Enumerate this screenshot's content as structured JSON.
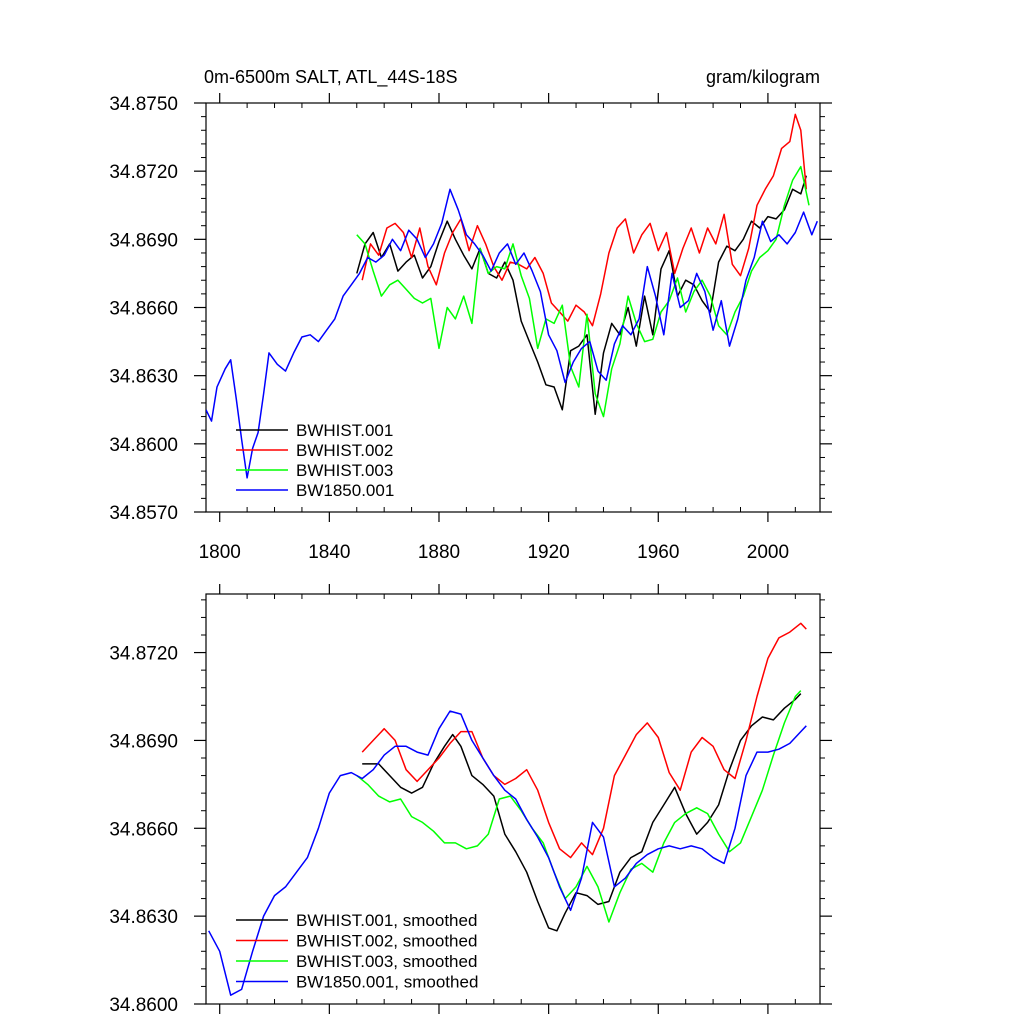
{
  "chart_data": [
    {
      "type": "line",
      "title_left": "0m-6500m SALT, ATL_44S-18S",
      "title_right": "gram/kilogram",
      "xlim": [
        1795,
        2019
      ],
      "ylim": [
        34.857,
        34.875
      ],
      "xticks": [
        1800,
        1840,
        1880,
        1920,
        1960,
        2000
      ],
      "yticks": [
        34.857,
        34.86,
        34.863,
        34.866,
        34.869,
        34.872,
        34.875
      ],
      "ytick_labels": [
        "34.8570",
        "34.8600",
        "34.8630",
        "34.8660",
        "34.8690",
        "34.8720",
        "34.8750"
      ],
      "series": [
        {
          "name": "BWHIST.001",
          "color": "#000000",
          "x": [
            1850,
            1853,
            1856,
            1859,
            1862,
            1865,
            1868,
            1871,
            1874,
            1877,
            1880,
            1883,
            1886,
            1889,
            1892,
            1895,
            1898,
            1901,
            1904,
            1907,
            1910,
            1913,
            1916,
            1919,
            1922,
            1925,
            1928,
            1931,
            1934,
            1937,
            1940,
            1943,
            1946,
            1949,
            1952,
            1955,
            1958,
            1961,
            1964,
            1967,
            1970,
            1973,
            1976,
            1979,
            1982,
            1985,
            1988,
            1991,
            1994,
            1997,
            2000,
            2003,
            2006,
            2009,
            2012,
            2014
          ],
          "values": [
            34.8675,
            34.8688,
            34.8693,
            34.8682,
            34.8688,
            34.8676,
            34.868,
            34.8683,
            34.8673,
            34.8678,
            34.8689,
            34.8698,
            34.869,
            34.8683,
            34.8677,
            34.8686,
            34.8675,
            34.8673,
            34.868,
            34.8672,
            34.8654,
            34.8645,
            34.8636,
            34.8626,
            34.8625,
            34.8615,
            34.8641,
            34.8643,
            34.8648,
            34.8613,
            34.864,
            34.8653,
            34.8648,
            34.866,
            34.8643,
            34.8665,
            34.8648,
            34.8677,
            34.8685,
            34.8665,
            34.8672,
            34.867,
            34.8663,
            34.8658,
            34.868,
            34.8687,
            34.8685,
            34.869,
            34.8698,
            34.8695,
            34.87,
            34.8699,
            34.8703,
            34.8712,
            34.871,
            34.8718
          ]
        },
        {
          "name": "BWHIST.002",
          "color": "#ff0000",
          "x": [
            1852,
            1855,
            1858,
            1861,
            1864,
            1867,
            1870,
            1873,
            1876,
            1879,
            1882,
            1885,
            1888,
            1891,
            1894,
            1897,
            1900,
            1903,
            1906,
            1909,
            1912,
            1915,
            1918,
            1921,
            1924,
            1927,
            1930,
            1933,
            1936,
            1939,
            1942,
            1945,
            1948,
            1951,
            1954,
            1957,
            1960,
            1963,
            1966,
            1969,
            1972,
            1975,
            1978,
            1981,
            1984,
            1987,
            1990,
            1993,
            1996,
            1999,
            2002,
            2005,
            2008,
            2010,
            2012,
            2014
          ],
          "values": [
            34.8672,
            34.8688,
            34.8683,
            34.8695,
            34.8697,
            34.8693,
            34.8682,
            34.8695,
            34.8678,
            34.867,
            34.8684,
            34.8693,
            34.8699,
            34.8685,
            34.8696,
            34.8688,
            34.8678,
            34.8672,
            34.868,
            34.8679,
            34.8677,
            34.8682,
            34.8675,
            34.8662,
            34.8658,
            34.8654,
            34.8661,
            34.8658,
            34.8652,
            34.8666,
            34.8684,
            34.8695,
            34.8699,
            34.8684,
            34.8692,
            34.8697,
            34.8685,
            34.8693,
            34.8675,
            34.8686,
            34.8695,
            34.8684,
            34.8695,
            34.8688,
            34.8701,
            34.8679,
            34.8674,
            34.8686,
            34.8705,
            34.8712,
            34.8718,
            34.873,
            34.8733,
            34.8745,
            34.8738,
            34.8712
          ]
        },
        {
          "name": "BWHIST.003",
          "color": "#00ff00",
          "x": [
            1850,
            1853,
            1856,
            1859,
            1862,
            1865,
            1868,
            1871,
            1874,
            1877,
            1880,
            1883,
            1886,
            1889,
            1892,
            1895,
            1898,
            1901,
            1904,
            1907,
            1910,
            1913,
            1916,
            1919,
            1922,
            1925,
            1928,
            1931,
            1934,
            1937,
            1940,
            1943,
            1946,
            1949,
            1952,
            1955,
            1958,
            1961,
            1964,
            1967,
            1970,
            1973,
            1976,
            1979,
            1982,
            1985,
            1988,
            1991,
            1994,
            1997,
            2000,
            2003,
            2006,
            2009,
            2012,
            2015
          ],
          "values": [
            34.8692,
            34.8688,
            34.8676,
            34.8665,
            34.867,
            34.8672,
            34.8668,
            34.8664,
            34.8662,
            34.8664,
            34.8642,
            34.866,
            34.8655,
            34.8665,
            34.8653,
            34.8686,
            34.8675,
            34.8678,
            34.8677,
            34.8688,
            34.8674,
            34.8664,
            34.8642,
            34.8655,
            34.8653,
            34.8661,
            34.8634,
            34.8625,
            34.8657,
            34.8622,
            34.8612,
            34.8633,
            34.8644,
            34.8665,
            34.8653,
            34.8645,
            34.8646,
            34.8658,
            34.8663,
            34.8673,
            34.8658,
            34.8667,
            34.8672,
            34.8665,
            34.8652,
            34.8648,
            34.8658,
            34.8665,
            34.8676,
            34.8682,
            34.8685,
            34.869,
            34.8705,
            34.8716,
            34.8722,
            34.8705
          ]
        },
        {
          "name": "BW1850.001",
          "color": "#0000ff",
          "x": [
            1795,
            1797,
            1799,
            1802,
            1804,
            1806,
            1808,
            1810,
            1812,
            1814,
            1816,
            1818,
            1821,
            1824,
            1827,
            1830,
            1833,
            1836,
            1839,
            1842,
            1845,
            1848,
            1851,
            1854,
            1857,
            1860,
            1863,
            1866,
            1869,
            1872,
            1875,
            1878,
            1881,
            1884,
            1887,
            1890,
            1893,
            1896,
            1899,
            1902,
            1905,
            1908,
            1911,
            1914,
            1917,
            1920,
            1923,
            1926,
            1929,
            1932,
            1935,
            1938,
            1941,
            1944,
            1947,
            1950,
            1953,
            1956,
            1959,
            1962,
            1965,
            1968,
            1971,
            1974,
            1977,
            1980,
            1983,
            1986,
            1989,
            1992,
            1995,
            1998,
            2001,
            2004,
            2007,
            2010,
            2013,
            2016,
            2018
          ],
          "values": [
            34.8615,
            34.861,
            34.8625,
            34.8633,
            34.8637,
            34.862,
            34.8602,
            34.8585,
            34.8598,
            34.8605,
            34.8622,
            34.864,
            34.8635,
            34.8632,
            34.864,
            34.8647,
            34.8648,
            34.8645,
            34.865,
            34.8655,
            34.8665,
            34.867,
            34.8675,
            34.8682,
            34.868,
            34.8683,
            34.869,
            34.8685,
            34.8694,
            34.869,
            34.8682,
            34.8688,
            34.8697,
            34.8712,
            34.8703,
            34.8692,
            34.8688,
            34.8683,
            34.8676,
            34.8684,
            34.8688,
            34.8679,
            34.8684,
            34.8676,
            34.8667,
            34.8648,
            34.8641,
            34.8627,
            34.8636,
            34.8642,
            34.8645,
            34.8632,
            34.8628,
            34.8644,
            34.8652,
            34.8648,
            34.8655,
            34.8678,
            34.8665,
            34.8648,
            34.8675,
            34.866,
            34.8663,
            34.8675,
            34.8667,
            34.865,
            34.8663,
            34.8643,
            34.8655,
            34.8672,
            34.8682,
            34.8698,
            34.8689,
            34.8692,
            34.8688,
            34.8693,
            34.8702,
            34.8692,
            34.8698
          ]
        }
      ],
      "legend": [
        "BWHIST.001",
        "BWHIST.002",
        "BWHIST.003",
        "BW1850.001"
      ],
      "legend_position": "bottom-left"
    },
    {
      "type": "line",
      "xlim": [
        1795,
        2019
      ],
      "ylim": [
        34.86,
        34.874
      ],
      "xticks": [
        1800,
        1840,
        1880,
        1920,
        1960,
        2000
      ],
      "yticks": [
        34.86,
        34.863,
        34.866,
        34.869,
        34.872
      ],
      "ytick_labels": [
        "34.8600",
        "34.8630",
        "34.8660",
        "34.8690",
        "34.8720"
      ],
      "series": [
        {
          "name": "BWHIST.001, smoothed",
          "color": "#000000",
          "x": [
            1852,
            1858,
            1862,
            1866,
            1870,
            1874,
            1878,
            1882,
            1885,
            1888,
            1892,
            1896,
            1900,
            1904,
            1908,
            1912,
            1916,
            1920,
            1923,
            1926,
            1930,
            1934,
            1938,
            1942,
            1946,
            1950,
            1954,
            1958,
            1962,
            1966,
            1970,
            1974,
            1978,
            1982,
            1986,
            1990,
            1994,
            1998,
            2002,
            2006,
            2010,
            2012
          ],
          "values": [
            34.8682,
            34.8682,
            34.8678,
            34.8674,
            34.8672,
            34.8674,
            34.8682,
            34.8688,
            34.8692,
            34.8688,
            34.8678,
            34.8675,
            34.8671,
            34.8658,
            34.8652,
            34.8645,
            34.8635,
            34.8626,
            34.8625,
            34.8631,
            34.8638,
            34.8637,
            34.8634,
            34.8635,
            34.8645,
            34.865,
            34.8652,
            34.8662,
            34.8668,
            34.8674,
            34.8665,
            34.8658,
            34.8662,
            34.8668,
            34.868,
            34.869,
            34.8695,
            34.8698,
            34.8697,
            34.8701,
            34.8704,
            34.8706
          ]
        },
        {
          "name": "BWHIST.002, smoothed",
          "color": "#ff0000",
          "x": [
            1852,
            1856,
            1860,
            1864,
            1868,
            1872,
            1876,
            1880,
            1884,
            1888,
            1892,
            1896,
            1900,
            1904,
            1908,
            1912,
            1916,
            1920,
            1924,
            1928,
            1932,
            1936,
            1940,
            1944,
            1948,
            1952,
            1956,
            1960,
            1964,
            1968,
            1972,
            1976,
            1980,
            1984,
            1988,
            1992,
            1996,
            2000,
            2004,
            2008,
            2012,
            2014
          ],
          "values": [
            34.8686,
            34.869,
            34.8694,
            34.869,
            34.868,
            34.8676,
            34.868,
            34.8684,
            34.8689,
            34.8693,
            34.8693,
            34.8684,
            34.8678,
            34.8675,
            34.8677,
            34.868,
            34.8673,
            34.8662,
            34.8653,
            34.865,
            34.8655,
            34.8651,
            34.866,
            34.8678,
            34.8685,
            34.8692,
            34.8696,
            34.8691,
            34.8679,
            34.8673,
            34.8686,
            34.8691,
            34.8688,
            34.868,
            34.8677,
            34.869,
            34.8705,
            34.8718,
            34.8725,
            34.8727,
            34.873,
            34.8728
          ]
        },
        {
          "name": "BWHIST.003, smoothed",
          "color": "#00ff00",
          "x": [
            1850,
            1854,
            1858,
            1862,
            1866,
            1870,
            1874,
            1878,
            1882,
            1886,
            1890,
            1894,
            1898,
            1902,
            1906,
            1910,
            1914,
            1918,
            1922,
            1926,
            1930,
            1934,
            1938,
            1942,
            1946,
            1950,
            1954,
            1958,
            1962,
            1966,
            1970,
            1974,
            1978,
            1982,
            1986,
            1990,
            1994,
            1998,
            2002,
            2006,
            2010,
            2012
          ],
          "values": [
            34.8678,
            34.8675,
            34.8671,
            34.8669,
            34.867,
            34.8664,
            34.8662,
            34.8659,
            34.8655,
            34.8655,
            34.8653,
            34.8654,
            34.8658,
            34.867,
            34.8671,
            34.8666,
            34.866,
            34.8655,
            34.8645,
            34.8636,
            34.864,
            34.8647,
            34.864,
            34.8628,
            34.8638,
            34.8646,
            34.8648,
            34.8645,
            34.8655,
            34.8662,
            34.8665,
            34.8667,
            34.8665,
            34.8658,
            34.8652,
            34.8655,
            34.8664,
            34.8673,
            34.8685,
            34.8696,
            34.8705,
            34.8707
          ]
        },
        {
          "name": "BW1850.001, smoothed",
          "color": "#0000ff",
          "x": [
            1796,
            1800,
            1804,
            1808,
            1812,
            1816,
            1820,
            1824,
            1828,
            1832,
            1836,
            1840,
            1844,
            1848,
            1852,
            1856,
            1860,
            1864,
            1868,
            1872,
            1876,
            1880,
            1884,
            1888,
            1892,
            1896,
            1900,
            1904,
            1908,
            1912,
            1916,
            1920,
            1924,
            1928,
            1932,
            1936,
            1940,
            1944,
            1948,
            1952,
            1956,
            1960,
            1964,
            1968,
            1972,
            1976,
            1980,
            1984,
            1988,
            1992,
            1996,
            2000,
            2004,
            2008,
            2012,
            2014
          ],
          "values": [
            34.8625,
            34.8618,
            34.8603,
            34.8605,
            34.8618,
            34.863,
            34.8637,
            34.864,
            34.8645,
            34.865,
            34.866,
            34.8672,
            34.8678,
            34.8679,
            34.8677,
            34.868,
            34.8685,
            34.8688,
            34.8688,
            34.8686,
            34.8685,
            34.8694,
            34.87,
            34.8699,
            34.869,
            34.8684,
            34.8678,
            34.8673,
            34.867,
            34.8663,
            34.8657,
            34.865,
            34.864,
            34.8632,
            34.8643,
            34.8662,
            34.8657,
            34.864,
            34.8643,
            34.8648,
            34.8651,
            34.8653,
            34.8654,
            34.8653,
            34.8654,
            34.8653,
            34.865,
            34.8648,
            34.866,
            34.8678,
            34.8686,
            34.8686,
            34.8687,
            34.8689,
            34.8693,
            34.8695
          ]
        }
      ],
      "legend": [
        "BWHIST.001, smoothed",
        "BWHIST.002, smoothed",
        "BWHIST.003, smoothed",
        "BW1850.001, smoothed"
      ],
      "legend_position": "bottom-left"
    }
  ]
}
